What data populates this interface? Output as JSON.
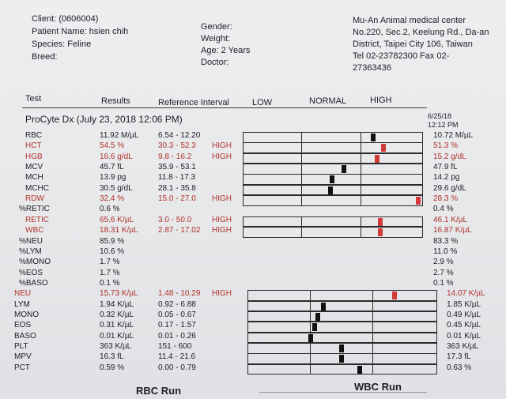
{
  "patient": {
    "client": "Client: (0606004)",
    "patient_name": "Patient Name: hsien chih",
    "species": "Species: Feline",
    "breed": "Breed:",
    "gender": "Gender:",
    "weight": "Weight:",
    "age": "Age: 2 Years",
    "doctor": "Doctor:"
  },
  "clinic": {
    "name": "Mu-An Animal medical center",
    "address1": "No.220, Sec.2, Keelung Rd., Da-an",
    "address2": "District, Taipei City 106, Taiwan",
    "phone1": "Tel 02-23782300  Fax 02-",
    "phone2": "27363436"
  },
  "columns": {
    "test": "Test",
    "results": "Results",
    "reference": "Reference Interval",
    "low": "LOW",
    "normal": "NORMAL",
    "high": "HIGH"
  },
  "run": {
    "title": "ProCyte Dx (July 23, 2018 12:06 PM)",
    "prev_date": "6/25/18",
    "prev_time": "12:12 PM"
  },
  "colors": {
    "abnormal": "#b2322b",
    "marker": "#111111",
    "marker_high": "#d23a3a"
  },
  "rows": [
    {
      "name": "RBC",
      "result": "11.92 M/µL",
      "ref": "6.54 - 12.20",
      "flag": "",
      "prev": "10.72 M/µL",
      "red": false,
      "level": 0.74
    },
    {
      "name": "HCT",
      "result": "54.5 %",
      "ref": "30.3 - 52.3",
      "flag": "HIGH",
      "prev": "51.3 %",
      "red": true,
      "level": 0.8
    },
    {
      "name": "HGB",
      "result": "16.6 g/dL",
      "ref": "9.8 - 16.2",
      "flag": "HIGH",
      "prev": "15.2 g/dL",
      "red": true,
      "level": 0.76
    },
    {
      "name": "MCV",
      "result": "45.7 fL",
      "ref": "35.9 - 53.1",
      "flag": "",
      "prev": "47.9 fL",
      "red": false,
      "level": 0.57
    },
    {
      "name": "MCH",
      "result": "13.9 pg",
      "ref": "11.8 - 17.3",
      "flag": "",
      "prev": "14.2 pg",
      "red": false,
      "level": 0.5
    },
    {
      "name": "MCHC",
      "result": "30.5 g/dL",
      "ref": "28.1 - 35.8",
      "flag": "",
      "prev": "29.6 g/dL",
      "red": false,
      "level": 0.49
    },
    {
      "name": "RDW",
      "result": "32.4 %",
      "ref": "15.0 - 27.0",
      "flag": "HIGH",
      "prev": "28.3 %",
      "red": true,
      "level": 1.0
    },
    {
      "name": "%RETIC",
      "result": "0.6 %",
      "ref": "",
      "flag": "",
      "prev": "0.4 %",
      "red": false,
      "level": null
    },
    {
      "name": "RETIC",
      "result": "65.6 K/µL",
      "ref": "3.0 - 50.0",
      "flag": "HIGH",
      "prev": "46.1 K/µL",
      "red": true,
      "level": 0.78
    },
    {
      "name": "WBC",
      "result": "18.31 K/µL",
      "ref": "2.87 - 17.02",
      "flag": "HIGH",
      "prev": "16.87 K/µL",
      "red": true,
      "level": 0.78
    },
    {
      "name": "%NEU",
      "result": "85.9 %",
      "ref": "",
      "flag": "",
      "prev": "83.3 %",
      "red": false,
      "level": null
    },
    {
      "name": "%LYM",
      "result": "10.6 %",
      "ref": "",
      "flag": "",
      "prev": "11.0 %",
      "red": false,
      "level": null
    },
    {
      "name": "%MONO",
      "result": "1.7 %",
      "ref": "",
      "flag": "",
      "prev": "2.9 %",
      "red": false,
      "level": null
    },
    {
      "name": "%EOS",
      "result": "1.7 %",
      "ref": "",
      "flag": "",
      "prev": "2.7 %",
      "red": false,
      "level": null
    },
    {
      "name": "%BASO",
      "result": "0.1 %",
      "ref": "",
      "flag": "",
      "prev": "0.1 %",
      "red": false,
      "level": null
    },
    {
      "name": "NEU",
      "result": "15.73 K/µL",
      "ref": "1.48 - 10.29",
      "flag": "HIGH",
      "prev": "14.07 K/µL",
      "red": true,
      "level": 0.79
    },
    {
      "name": "LYM",
      "result": "1.94 K/µL",
      "ref": "0.92 - 6.88",
      "flag": "",
      "prev": "1.85 K/µL",
      "red": false,
      "level": 0.4
    },
    {
      "name": "MONO",
      "result": "0.32 K/µL",
      "ref": "0.05 - 0.67",
      "flag": "",
      "prev": "0.49 K/µL",
      "red": false,
      "level": 0.37
    },
    {
      "name": "EOS",
      "result": "0.31 K/µL",
      "ref": "0.17 - 1.57",
      "flag": "",
      "prev": "0.45 K/µL",
      "red": false,
      "level": 0.35
    },
    {
      "name": "BASO",
      "result": "0.01 K/µL",
      "ref": "0.01 - 0.26",
      "flag": "",
      "prev": "0.01 K/µL",
      "red": false,
      "level": 0.33
    },
    {
      "name": "PLT",
      "result": "363 K/µL",
      "ref": "151 - 600",
      "flag": "",
      "prev": "363 K/µL",
      "red": false,
      "level": 0.5
    },
    {
      "name": "MPV",
      "result": "16.3 fL",
      "ref": "11.4 - 21.6",
      "flag": "",
      "prev": "17.3 fL",
      "red": false,
      "level": 0.5
    },
    {
      "name": "PCT",
      "result": "0.59 %",
      "ref": "0.00 - 0.79",
      "flag": "",
      "prev": "0.63 %",
      "red": false,
      "level": 0.6
    }
  ],
  "footer": {
    "rbc_run": "RBC Run",
    "wbc_run": "WBC Run"
  }
}
